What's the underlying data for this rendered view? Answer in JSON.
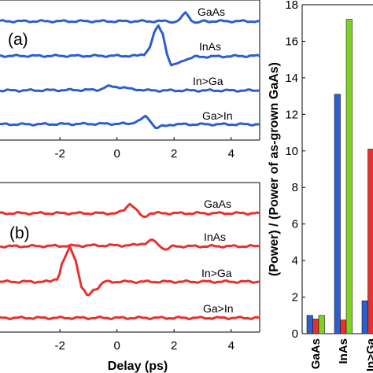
{
  "chart_data": [
    {
      "type": "line",
      "panel_label": "(a)",
      "x_ticks": [
        "-2",
        "0",
        "2",
        "4"
      ],
      "xlim": [
        -4.1,
        5
      ],
      "color": "#2b5fcf",
      "series": [
        {
          "name": "GaAs",
          "offset": 3,
          "x": [
            -4.1,
            1.8,
            2.0,
            2.2,
            2.4,
            2.6,
            2.8,
            3.0,
            5
          ],
          "y": [
            0,
            0,
            -0.03,
            0.05,
            0.32,
            0.05,
            -0.07,
            0,
            0
          ]
        },
        {
          "name": "InAs",
          "offset": 2,
          "x": [
            -4.1,
            0.7,
            0.95,
            1.15,
            1.3,
            1.45,
            1.6,
            1.75,
            1.9,
            2.1,
            2.4,
            2.8,
            5
          ],
          "y": [
            0,
            0,
            0.06,
            0.3,
            0.8,
            1.05,
            0.8,
            0.1,
            -0.35,
            -0.28,
            -0.12,
            -0.03,
            0
          ]
        },
        {
          "name": "In>Ga",
          "offset": 1,
          "x": [
            -4.1,
            -0.7,
            -0.3,
            0.1,
            0.6,
            1.2,
            5
          ],
          "y": [
            0,
            0.02,
            0.14,
            0.12,
            0.04,
            0,
            0
          ]
        },
        {
          "name": "Ga>In",
          "offset": 0,
          "x": [
            -4.1,
            0.4,
            0.75,
            1.0,
            1.15,
            1.35,
            1.6,
            2.0,
            5
          ],
          "y": [
            0,
            0.02,
            0.12,
            0.27,
            0.15,
            -0.12,
            -0.07,
            0,
            0
          ]
        }
      ]
    },
    {
      "type": "line",
      "panel_label": "(b)",
      "x_ticks": [
        "-2",
        "0",
        "2",
        "4"
      ],
      "xlim": [
        -4.1,
        5
      ],
      "xlabel": "Delay (ps)",
      "color": "#e8312f",
      "series": [
        {
          "name": "GaAs",
          "offset": 3,
          "x": [
            -4.1,
            0.0,
            0.25,
            0.45,
            0.65,
            0.9,
            1.2,
            5
          ],
          "y": [
            0,
            0,
            0.1,
            0.33,
            0.12,
            -0.12,
            0,
            0
          ]
        },
        {
          "name": "InAs",
          "offset": 2,
          "x": [
            -4.1,
            0.5,
            1.0,
            1.25,
            1.45,
            1.7,
            2.0,
            5
          ],
          "y": [
            0,
            0.03,
            0.1,
            0.2,
            0.05,
            -0.1,
            0,
            0
          ]
        },
        {
          "name": "In>Ga",
          "offset": 1,
          "x": [
            -4.1,
            -2.4,
            -2.1,
            -1.85,
            -1.65,
            -1.45,
            -1.25,
            -1.05,
            -0.75,
            -0.4,
            5
          ],
          "y": [
            0,
            0,
            0.1,
            0.7,
            1.1,
            0.7,
            -0.15,
            -0.45,
            -0.22,
            0,
            0
          ]
        },
        {
          "name": "Ga>In",
          "offset": 0,
          "x": [
            -4.1,
            5
          ],
          "y": [
            0,
            0
          ]
        }
      ]
    },
    {
      "type": "bar",
      "categories": [
        "GaAs",
        "InAs",
        "In>Ga"
      ],
      "ylabel": "(Power) / (Power of as-grown GaAs)",
      "y_ticks": [
        "0",
        "2",
        "4",
        "6",
        "8",
        "10",
        "12",
        "14",
        "16",
        "18"
      ],
      "ylim": [
        0,
        18
      ],
      "series": [
        {
          "color": "#2b5fcf",
          "values": [
            1.0,
            13.1,
            1.8
          ]
        },
        {
          "color": "#e8312f",
          "values": [
            0.8,
            0.75,
            10.1
          ]
        },
        {
          "color": "#7ed321",
          "values": [
            1.0,
            17.2,
            null
          ]
        }
      ]
    }
  ]
}
